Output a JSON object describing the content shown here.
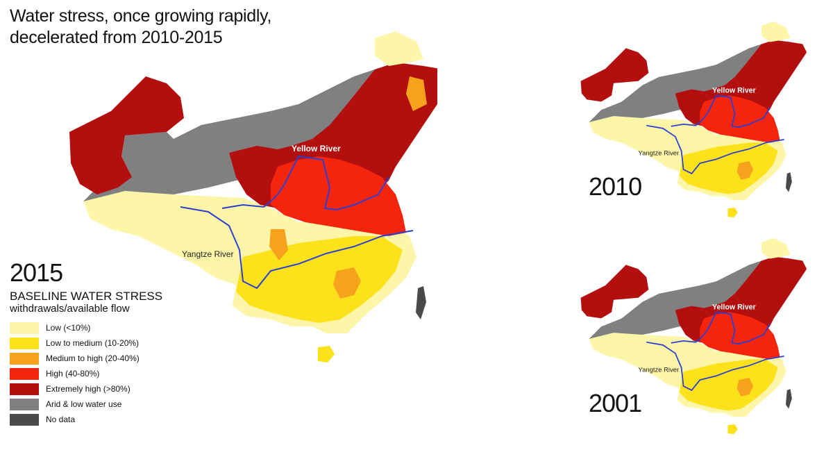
{
  "title_line1": "Water stress, once growing rapidly,",
  "title_line2": "decelerated from 2010-2015",
  "maps": {
    "main": {
      "year": "2015",
      "yellow_river_label": "Yellow River",
      "yangtze_river_label": "Yangtze River"
    },
    "m2010": {
      "year": "2010",
      "yellow_river_label": "Yellow River",
      "yangtze_river_label": "Yangtze River"
    },
    "m2001": {
      "year": "2001",
      "yellow_river_label": "Yellow River",
      "yangtze_river_label": "Yangtze River"
    }
  },
  "legend": {
    "title": "BASELINE WATER STRESS",
    "subtitle": "withdrawals/available flow",
    "items": [
      {
        "label": "Low (<10%)",
        "color": "#fdf6a8"
      },
      {
        "label": "Low to medium (10-20%)",
        "color": "#fde21b"
      },
      {
        "label": "Medium to high (20-40%)",
        "color": "#f7a21c"
      },
      {
        "label": "High (40-80%)",
        "color": "#f5250d"
      },
      {
        "label": "Extremely high (>80%)",
        "color": "#b30f0f"
      },
      {
        "label": "Arid & low water use",
        "color": "#808080"
      },
      {
        "label": "No data",
        "color": "#4a4a4a"
      }
    ]
  },
  "colors": {
    "river": "#2a3fd1",
    "low": "#fdf6a8",
    "low_medium": "#fde21b",
    "medium_high": "#f7a21c",
    "high": "#f5250d",
    "extremely_high": "#b30f0f",
    "arid": "#808080",
    "no_data": "#4a4a4a"
  }
}
